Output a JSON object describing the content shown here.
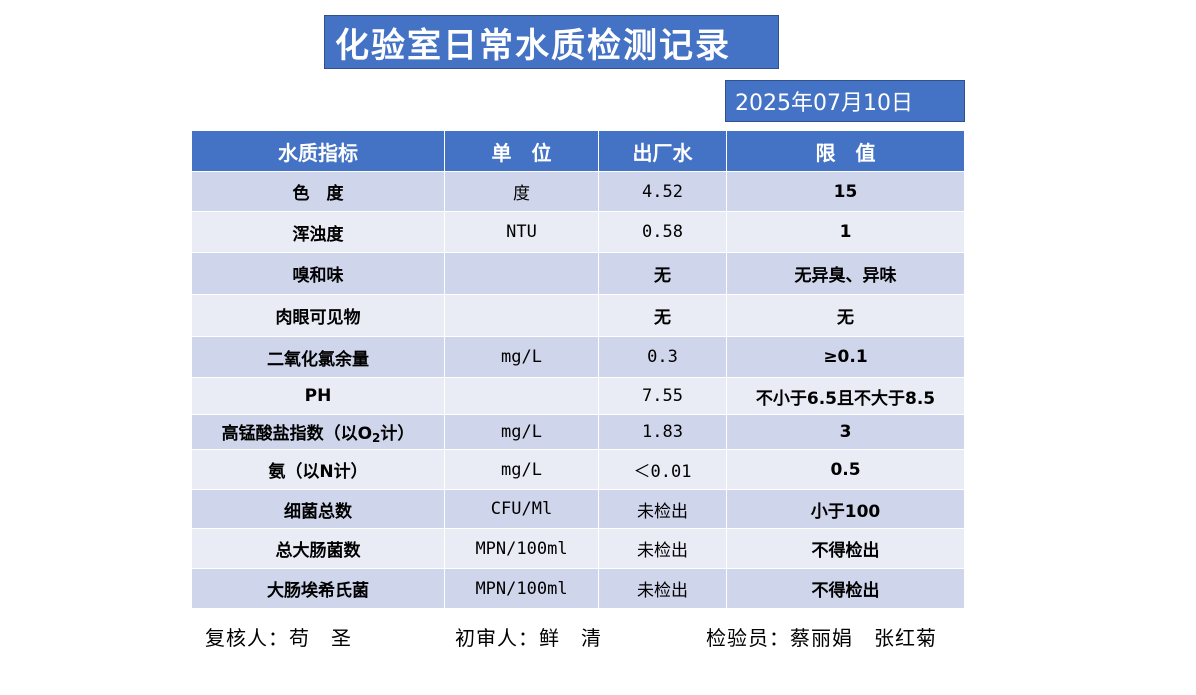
{
  "title": "化验室日常水质检测记录",
  "date": "2025年07月10日",
  "table": {
    "headers": [
      "水质指标",
      "单　位",
      "出厂水",
      "限　值"
    ],
    "rows": [
      {
        "indicator": "色　度",
        "unit": "度",
        "value": "4.52",
        "limit": "15"
      },
      {
        "indicator": "浑浊度",
        "unit": "NTU",
        "value": "0.58",
        "limit": "1"
      },
      {
        "indicator": "嗅和味",
        "unit": "",
        "value": "无",
        "limit": "无异臭、异味"
      },
      {
        "indicator": "肉眼可见物",
        "unit": "",
        "value": "无",
        "limit": "无"
      },
      {
        "indicator": "二氧化氯余量",
        "unit": "mg/L",
        "value": "0.3",
        "limit": "≥0.1"
      },
      {
        "indicator": "PH",
        "unit": "",
        "value": "7.55",
        "limit": "不小于6.5且不大于8.5"
      },
      {
        "indicator_pre": "高锰酸盐指数（以O",
        "indicator_sub": "2",
        "indicator_post": "计）",
        "unit": "mg/L",
        "value": "1.83",
        "limit": "3"
      },
      {
        "indicator": "氨（以N计）",
        "unit": "mg/L",
        "value": "＜0.01",
        "limit": "0.5"
      },
      {
        "indicator": "细菌总数",
        "unit": "CFU/Ml",
        "value": "未检出",
        "limit": "小于100"
      },
      {
        "indicator": "总大肠菌数",
        "unit": "MPN/100ml",
        "value": "未检出",
        "limit": "不得检出"
      },
      {
        "indicator": "大肠埃希氏菌",
        "unit": "MPN/100ml",
        "value": "未检出",
        "limit": "不得检出"
      }
    ]
  },
  "signatures": {
    "reviewer": "复核人：苟　圣",
    "first_reviewer": "初审人：鲜　清",
    "inspector": "检验员：蔡丽娟　张红菊"
  }
}
